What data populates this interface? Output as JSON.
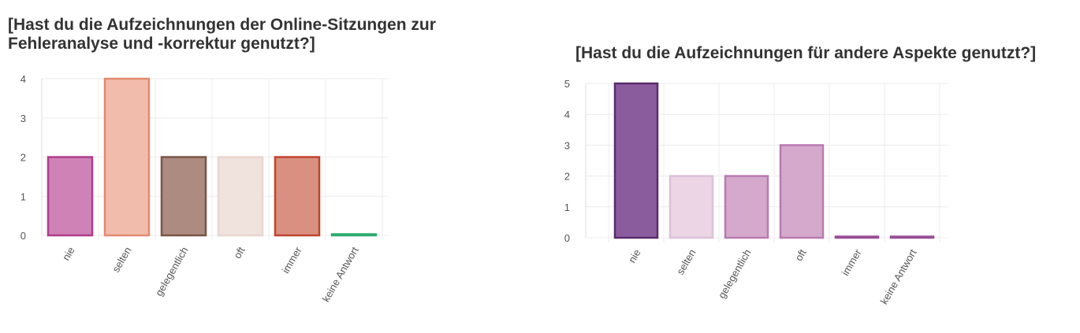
{
  "chart_data": [
    {
      "type": "bar",
      "title_lines": [
        "[Hast du die Aufzeichnungen der Online-Sitzungen zur",
        "Fehleranalyse und -korrektur genutzt?]"
      ],
      "categories": [
        "nie",
        "selten",
        "gelegentlich",
        "oft",
        "immer",
        "keine Antwort"
      ],
      "values": [
        2,
        4,
        2,
        2,
        2,
        0
      ],
      "ylim": [
        0,
        4
      ],
      "yticks": [
        0,
        1,
        2,
        3,
        4
      ],
      "grid": true,
      "colors": {
        "fill": [
          "#cf82b6",
          "#f2bcac",
          "#ad8b80",
          "#f0e2dc",
          "#d99080",
          "#2eab6c"
        ],
        "stroke": [
          "#b03c8c",
          "#e38a72",
          "#7a5548",
          "#e8d6ce",
          "#c0442e",
          "#2eab6c"
        ]
      }
    },
    {
      "type": "bar",
      "title_lines": [
        "[Hast du die Aufzeichnungen für andere Aspekte genutzt?]"
      ],
      "categories": [
        "nie",
        "selten",
        "gelegentlich",
        "oft",
        "immer",
        "keine Antwort"
      ],
      "values": [
        5,
        2,
        2,
        3,
        0,
        0
      ],
      "ylim": [
        0,
        5
      ],
      "yticks": [
        0,
        1,
        2,
        3,
        4,
        5
      ],
      "grid": true,
      "colors": {
        "fill": [
          "#8a5c9e",
          "#ecd6e6",
          "#d4a9cc",
          "#d4a9cc",
          "#b57ab0",
          "#b57ab0"
        ],
        "stroke": [
          "#5a2a6e",
          "#dcc0d8",
          "#b87ab0",
          "#b87ab0",
          "#9a4e98",
          "#9a4e98"
        ]
      }
    }
  ]
}
